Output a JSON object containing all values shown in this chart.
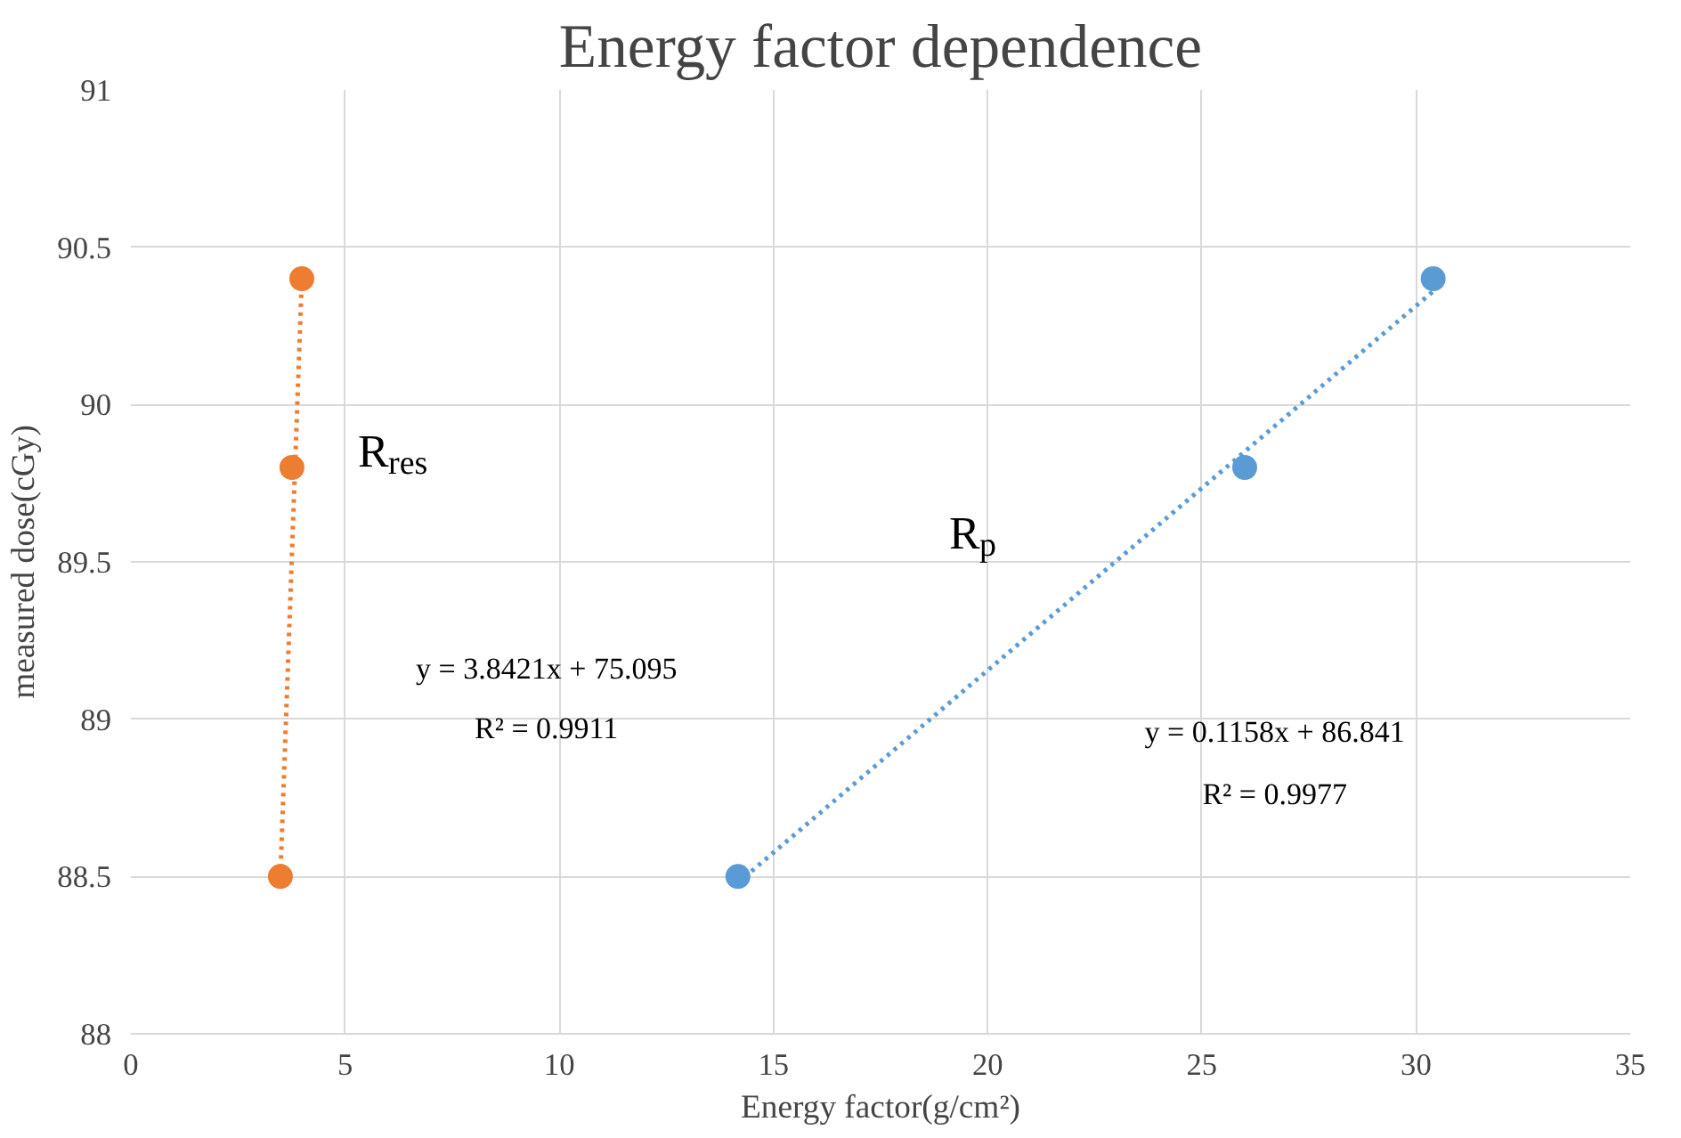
{
  "chart_data": {
    "type": "scatter",
    "title": "Energy factor dependence",
    "xlabel": "Energy factor(g/cm²)",
    "ylabel": "measured dose(cGy)",
    "xlim": [
      0,
      35
    ],
    "xticks": [
      0,
      5,
      10,
      15,
      20,
      25,
      30,
      35
    ],
    "ylim": [
      88,
      91
    ],
    "yticks": [
      88,
      88.5,
      89,
      89.5,
      90,
      90.5,
      91
    ],
    "grid": true,
    "marker": "circle",
    "series": [
      {
        "color": "#ed7d31",
        "x": [
          3.49,
          3.76,
          3.99
        ],
        "values": [
          88.5,
          89.8,
          90.4
        ]
      },
      {
        "type": "line",
        "color": "#ed7d31",
        "line_style": "dotted",
        "marker": "none",
        "x": [
          3.49,
          3.99
        ],
        "values": [
          88.5,
          90.4
        ]
      },
      {
        "color": "#5b9bd5",
        "x": [
          14.17,
          26.0,
          30.4
        ],
        "values": [
          88.5,
          89.8,
          90.4
        ]
      },
      {
        "type": "line",
        "color": "#5b9bd5",
        "line_style": "dotted",
        "marker": "none",
        "x": [
          14.17,
          30.4
        ],
        "values": [
          88.48,
          90.36
        ]
      }
    ],
    "annotations": [
      "R$_{res}$",
      "R$_{p}$",
      "y = 3.8421x + 75.095",
      "R² = 0.9911",
      "y = 0.1158x + 86.841",
      "R² = 0.9977"
    ]
  }
}
